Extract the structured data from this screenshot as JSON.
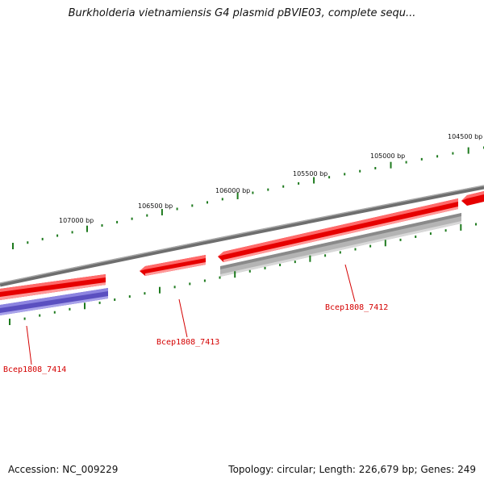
{
  "header": {
    "title": "Burkholderia vietnamiensis G4 plasmid pBVIE03, complete sequ..."
  },
  "footer": {
    "accession": "Accession: NC_009229",
    "summary": "Topology: circular; Length: 226,679 bp; Genes: 249"
  },
  "colors": {
    "backbone": "#7a7a7a",
    "ticks": "#1e7a1e",
    "gene_forward": "#ee1111",
    "gene_gray": "#bdbdbd",
    "gene_blue": "#6a5acd",
    "label": "#d40000"
  },
  "scale_labels": [
    {
      "text": "107000 bp"
    },
    {
      "text": "106500 bp"
    },
    {
      "text": "106000 bp"
    },
    {
      "text": "105500 bp"
    },
    {
      "text": "105000 bp"
    },
    {
      "text": "104500 bp"
    }
  ],
  "gene_labels": [
    {
      "text": "Bcep1808_7414"
    },
    {
      "text": "Bcep1808_7413"
    },
    {
      "text": "Bcep1808_7412"
    }
  ]
}
